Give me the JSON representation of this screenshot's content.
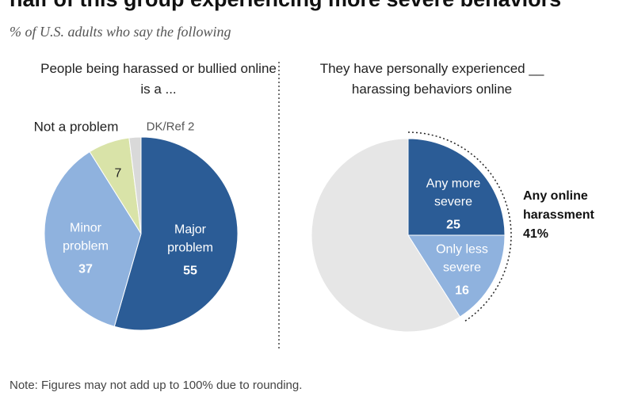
{
  "title": "half of this group experiencing more severe behaviors",
  "subtitle": "% of U.S. adults who say the following",
  "note": "Note: Figures may not add up to 100% due to rounding.",
  "chart_data": [
    {
      "type": "pie",
      "title": "People being harassed or bullied online is a ...",
      "categories": [
        "Major problem",
        "Minor problem",
        "Not a problem",
        "DK/Ref"
      ],
      "values": [
        55,
        37,
        7,
        2
      ],
      "colors": [
        "#2b5c96",
        "#8fb2de",
        "#d9e3a8",
        "#d9d9d9"
      ]
    },
    {
      "type": "pie",
      "title": "They have personally experienced __ harassing behaviors online",
      "categories": [
        "Any more severe",
        "Only less severe",
        null
      ],
      "values": [
        25,
        16,
        59
      ],
      "colors": [
        "#2b5c96",
        "#8fb2de",
        "#e6e6e6"
      ],
      "annotation": {
        "text": "Any online harassment",
        "value": "41%"
      }
    }
  ]
}
